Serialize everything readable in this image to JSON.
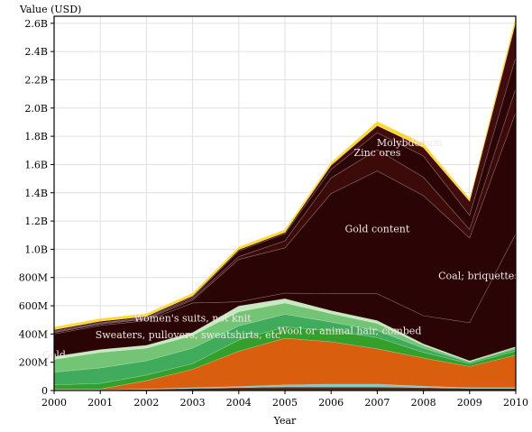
{
  "chart_data": {
    "type": "area",
    "stacked": true,
    "title": "",
    "xlabel": "Year",
    "ylabel": "Value (USD)",
    "x": [
      2000,
      2001,
      2002,
      2003,
      2004,
      2005,
      2006,
      2007,
      2008,
      2009,
      2010
    ],
    "xlim": [
      2000,
      2010
    ],
    "ylim": [
      0,
      2650000000
    ],
    "yticks": [
      {
        "value": 0,
        "label": "0"
      },
      {
        "value": 200000000,
        "label": "200M"
      },
      {
        "value": 400000000,
        "label": "400M"
      },
      {
        "value": 600000000,
        "label": "600M"
      },
      {
        "value": 800000000,
        "label": "800M"
      },
      {
        "value": 1000000000,
        "label": "1.0B"
      },
      {
        "value": 1200000000,
        "label": "1.2B"
      },
      {
        "value": 1400000000,
        "label": "1.4B"
      },
      {
        "value": 1600000000,
        "label": "1.6B"
      },
      {
        "value": 1800000000,
        "label": "1.8B"
      },
      {
        "value": 2000000000,
        "label": "2.0B"
      },
      {
        "value": 2200000000,
        "label": "2.2B"
      },
      {
        "value": 2400000000,
        "label": "2.4B"
      },
      {
        "value": 2600000000,
        "label": "2.6B"
      }
    ],
    "grid": true,
    "series": [
      {
        "name": "",
        "color": "#5a2e1a",
        "values": [
          5000000,
          5000000,
          8000000,
          15000000,
          20000000,
          25000000,
          25000000,
          25000000,
          20000000,
          15000000,
          15000000
        ]
      },
      {
        "name": "",
        "color": "#7fc8c8",
        "values": [
          0,
          0,
          2000000,
          5000000,
          8000000,
          15000000,
          20000000,
          20000000,
          10000000,
          5000000,
          5000000
        ]
      },
      {
        "name": "Gold",
        "color": "#d95f0e",
        "values": [
          5000000,
          5000000,
          60000000,
          130000000,
          250000000,
          330000000,
          300000000,
          250000000,
          200000000,
          150000000,
          230000000
        ]
      },
      {
        "name": "Wool or animal hair, combed",
        "color": "#33a02c",
        "values": [
          30000000,
          40000000,
          40000000,
          40000000,
          80000000,
          80000000,
          80000000,
          80000000,
          40000000,
          20000000,
          30000000
        ]
      },
      {
        "name": "Sweaters, pullovers, sweatshirts, etc",
        "color": "#41ab5d",
        "values": [
          90000000,
          110000000,
          100000000,
          110000000,
          100000000,
          90000000,
          60000000,
          50000000,
          30000000,
          10000000,
          15000000
        ]
      },
      {
        "name": "Women's suits, not knit",
        "color": "#74c476",
        "values": [
          90000000,
          110000000,
          90000000,
          90000000,
          100000000,
          80000000,
          60000000,
          50000000,
          20000000,
          5000000,
          10000000
        ]
      },
      {
        "name": "",
        "color": "#c7e9c0",
        "values": [
          20000000,
          20000000,
          20000000,
          20000000,
          40000000,
          30000000,
          20000000,
          20000000,
          10000000,
          5000000,
          5000000
        ]
      },
      {
        "name": "Coal; briquettes",
        "color": "#2b0505",
        "values": [
          160000000,
          170000000,
          175000000,
          210000000,
          30000000,
          40000000,
          120000000,
          190000000,
          200000000,
          270000000,
          800000000
        ]
      },
      {
        "name": "Gold content",
        "color": "#2b0505",
        "values": [
          10000000,
          10000000,
          10000000,
          20000000,
          300000000,
          320000000,
          710000000,
          870000000,
          850000000,
          600000000,
          860000000
        ]
      },
      {
        "name": "Zinc ores",
        "color": "#3d0a0a",
        "values": [
          5000000,
          5000000,
          5000000,
          10000000,
          20000000,
          50000000,
          110000000,
          150000000,
          130000000,
          60000000,
          170000000
        ]
      },
      {
        "name": "Molybdenum",
        "color": "#2b0505",
        "values": [
          5000000,
          5000000,
          5000000,
          10000000,
          40000000,
          50000000,
          60000000,
          120000000,
          150000000,
          100000000,
          220000000
        ]
      },
      {
        "name": "",
        "color": "#400c0c",
        "values": [
          10000000,
          10000000,
          10000000,
          10000000,
          10000000,
          10000000,
          30000000,
          50000000,
          60000000,
          100000000,
          250000000
        ]
      },
      {
        "name": "",
        "color": "#fdd835",
        "values": [
          20000000,
          20000000,
          20000000,
          20000000,
          20000000,
          20000000,
          20000000,
          30000000,
          30000000,
          20000000,
          40000000
        ]
      }
    ],
    "labels": [
      {
        "text": "Gold",
        "x": 2000.0,
        "y": 230000000
      },
      {
        "text": "Wool or animal hair, combed",
        "x": 2006.4,
        "y": 400000000
      },
      {
        "text": "Sweaters, pullovers, sweatshirts, etc",
        "x": 2002.9,
        "y": 370000000
      },
      {
        "text": "Women's suits, not knit",
        "x": 2003.0,
        "y": 490000000
      },
      {
        "text": "Gold content",
        "x": 2007.0,
        "y": 1120000000
      },
      {
        "text": "Coal; briquettes",
        "x": 2009.2,
        "y": 790000000
      },
      {
        "text": "Zinc ores",
        "x": 2007.0,
        "y": 1660000000
      },
      {
        "text": "Molybdenum",
        "x": 2007.7,
        "y": 1730000000
      }
    ]
  }
}
